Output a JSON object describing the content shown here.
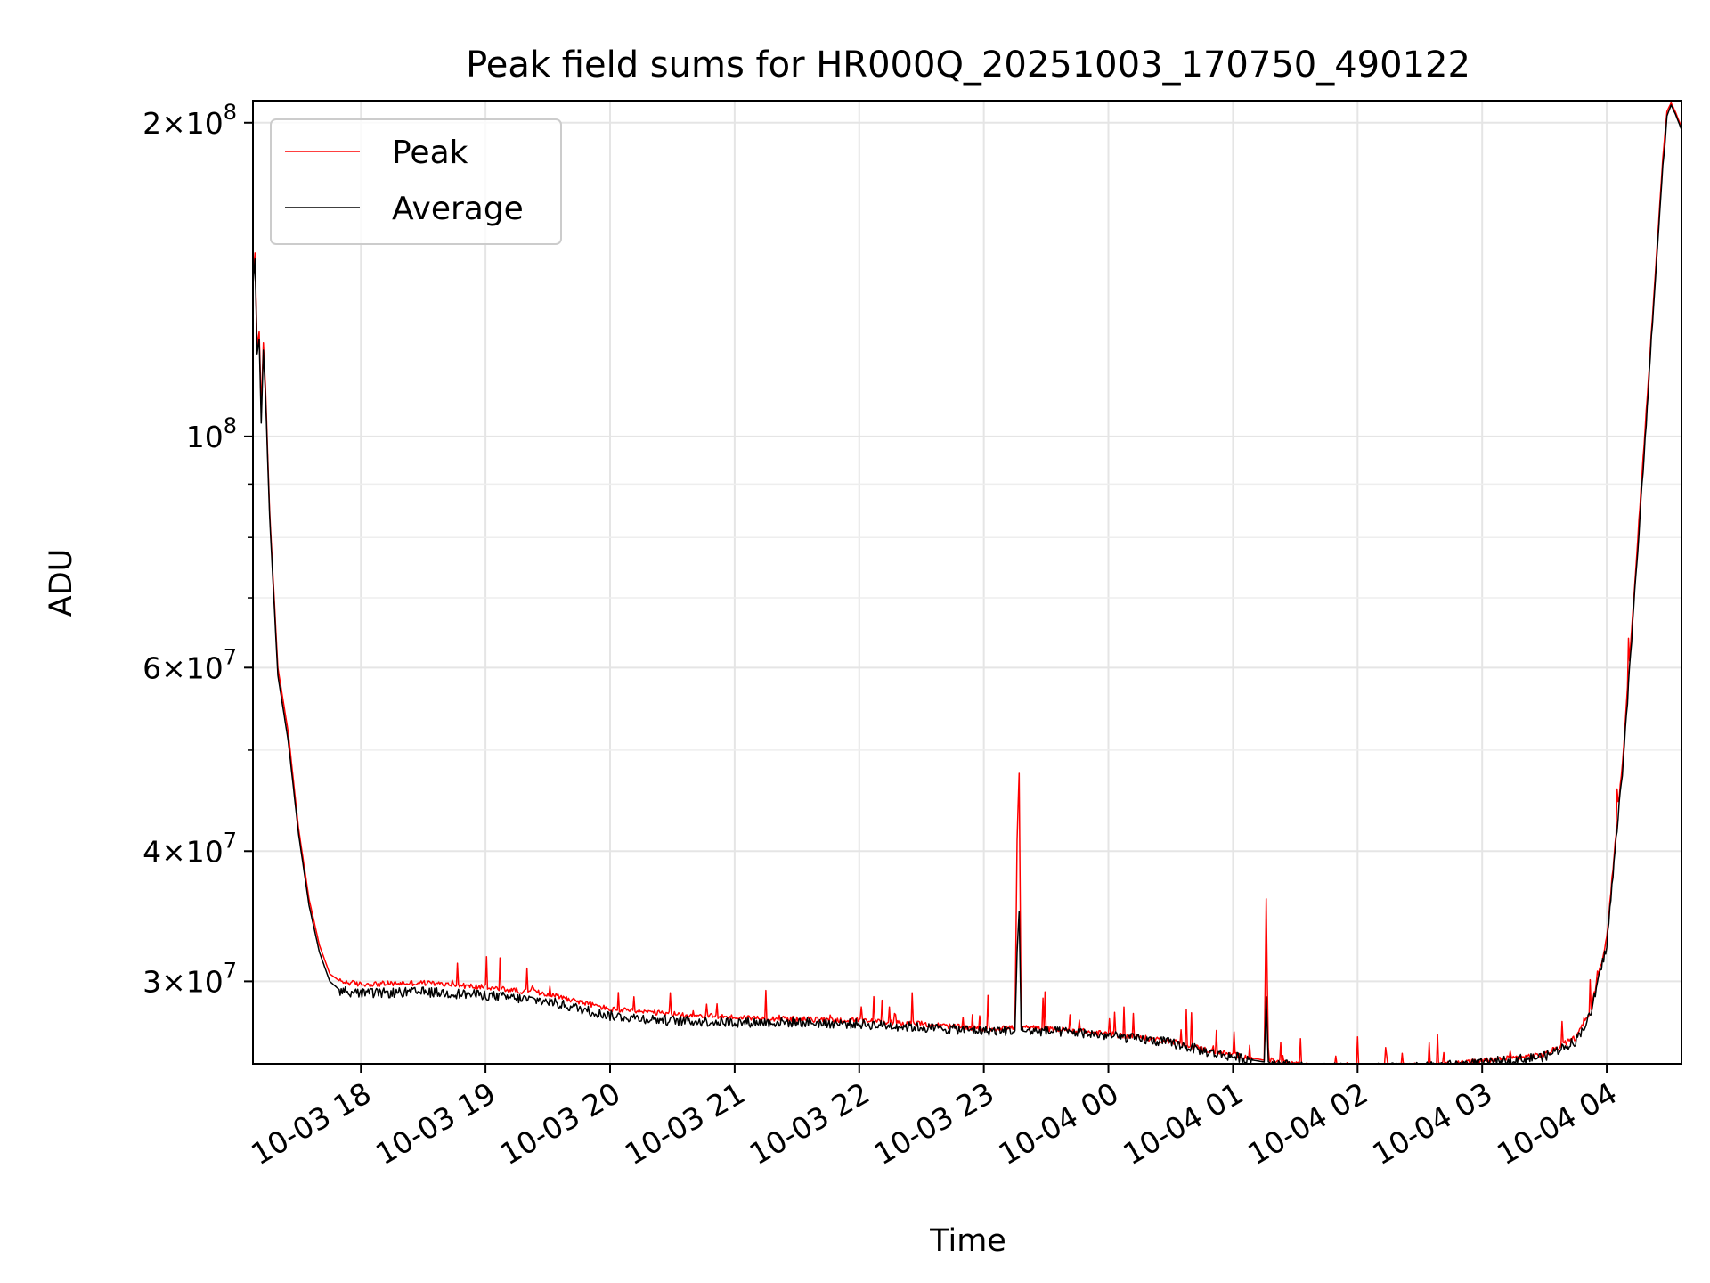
{
  "chart_data": {
    "type": "line",
    "title": "Peak field sums for HR000Q_20251003_170750_490122",
    "xlabel": "Time",
    "ylabel": "ADU",
    "y_scale": "log",
    "ylim": [
      25000000,
      210000000
    ],
    "xlim": [
      "2025-10-03 17:08",
      "2025-10-04 04:36"
    ],
    "grid": true,
    "legend_position": "upper-left",
    "x_ticks": [
      {
        "t": "2025-10-03 18:00",
        "label": "10-03 18"
      },
      {
        "t": "2025-10-03 19:00",
        "label": "10-03 19"
      },
      {
        "t": "2025-10-03 20:00",
        "label": "10-03 20"
      },
      {
        "t": "2025-10-03 21:00",
        "label": "10-03 21"
      },
      {
        "t": "2025-10-03 22:00",
        "label": "10-03 22"
      },
      {
        "t": "2025-10-03 23:00",
        "label": "10-03 23"
      },
      {
        "t": "2025-10-04 00:00",
        "label": "10-04 00"
      },
      {
        "t": "2025-10-04 01:00",
        "label": "10-04 01"
      },
      {
        "t": "2025-10-04 02:00",
        "label": "10-04 02"
      },
      {
        "t": "2025-10-04 03:00",
        "label": "10-04 03"
      },
      {
        "t": "2025-10-04 04:00",
        "label": "10-04 04"
      }
    ],
    "y_major_ticks": [
      {
        "value": 30000000,
        "mant": "3",
        "exp": "7"
      },
      {
        "value": 40000000,
        "mant": "4",
        "exp": "7"
      },
      {
        "value": 60000000,
        "mant": "6",
        "exp": "7"
      },
      {
        "value": 100000000,
        "mant": "",
        "exp": "8"
      },
      {
        "value": 200000000,
        "mant": "2",
        "exp": "8"
      }
    ],
    "y_minor_ticks": [
      50000000,
      70000000,
      80000000,
      90000000
    ],
    "series": [
      {
        "name": "Peak",
        "color": "#ff0000",
        "points": [
          [
            "2025-10-03 17:08",
            142000000
          ],
          [
            "2025-10-03 17:09",
            150000000
          ],
          [
            "2025-10-03 17:10",
            122000000
          ],
          [
            "2025-10-03 17:11",
            126000000
          ],
          [
            "2025-10-03 17:12",
            106000000
          ],
          [
            "2025-10-03 17:13",
            123000000
          ],
          [
            "2025-10-03 17:14",
            112000000
          ],
          [
            "2025-10-03 17:16",
            85000000
          ],
          [
            "2025-10-03 17:20",
            60000000
          ],
          [
            "2025-10-03 17:25",
            52000000
          ],
          [
            "2025-10-03 17:30",
            42000000
          ],
          [
            "2025-10-03 17:35",
            36000000
          ],
          [
            "2025-10-03 17:40",
            32500000
          ],
          [
            "2025-10-03 17:45",
            30500000
          ],
          [
            "2025-10-03 17:50",
            30000000
          ],
          [
            "2025-10-03 18:00",
            29800000
          ],
          [
            "2025-10-03 18:30",
            29900000
          ],
          [
            "2025-10-03 19:00",
            29600000
          ],
          [
            "2025-10-03 19:30",
            29200000
          ],
          [
            "2025-10-03 20:00",
            28200000
          ],
          [
            "2025-10-03 20:30",
            27900000
          ],
          [
            "2025-10-03 21:00",
            27700000
          ],
          [
            "2025-10-03 21:30",
            27600000
          ],
          [
            "2025-10-03 22:00",
            27500000
          ],
          [
            "2025-10-03 22:30",
            27300000
          ],
          [
            "2025-10-03 23:00",
            27000000
          ],
          [
            "2025-10-03 23:15",
            27100000
          ],
          [
            "2025-10-03 23:16",
            41000000
          ],
          [
            "2025-10-03 23:17",
            47500000
          ],
          [
            "2025-10-03 23:18",
            27100000
          ],
          [
            "2025-10-03 23:45",
            26900000
          ],
          [
            "2025-10-04 00:00",
            26700000
          ],
          [
            "2025-10-04 00:30",
            26300000
          ],
          [
            "2025-10-04 00:50",
            25700000
          ],
          [
            "2025-10-04 01:10",
            25300000
          ],
          [
            "2025-10-04 01:15",
            25200000
          ],
          [
            "2025-10-04 01:16",
            36000000
          ],
          [
            "2025-10-04 01:17",
            25200000
          ],
          [
            "2025-10-04 01:35",
            24900000
          ],
          [
            "2025-10-04 02:00",
            24850000
          ],
          [
            "2025-10-04 02:30",
            24900000
          ],
          [
            "2025-10-04 03:00",
            25150000
          ],
          [
            "2025-10-04 03:30",
            25500000
          ],
          [
            "2025-10-04 03:45",
            26500000
          ],
          [
            "2025-10-04 03:52",
            28000000
          ],
          [
            "2025-10-04 04:00",
            33000000
          ],
          [
            "2025-10-04 04:08",
            50000000
          ],
          [
            "2025-10-04 04:15",
            80000000
          ],
          [
            "2025-10-04 04:22",
            130000000
          ],
          [
            "2025-10-04 04:27",
            185000000
          ],
          [
            "2025-10-04 04:29",
            205000000
          ],
          [
            "2025-10-04 04:31",
            209000000
          ],
          [
            "2025-10-04 04:33",
            205000000
          ],
          [
            "2025-10-04 04:36",
            198000000
          ]
        ]
      },
      {
        "name": "Average",
        "color": "#000000",
        "points": [
          [
            "2025-10-03 17:08",
            140000000
          ],
          [
            "2025-10-03 17:09",
            148000000
          ],
          [
            "2025-10-03 17:10",
            120000000
          ],
          [
            "2025-10-03 17:11",
            124000000
          ],
          [
            "2025-10-03 17:12",
            103000000
          ],
          [
            "2025-10-03 17:13",
            121000000
          ],
          [
            "2025-10-03 17:14",
            110000000
          ],
          [
            "2025-10-03 17:16",
            84000000
          ],
          [
            "2025-10-03 17:20",
            59000000
          ],
          [
            "2025-10-03 17:25",
            51000000
          ],
          [
            "2025-10-03 17:30",
            41500000
          ],
          [
            "2025-10-03 17:35",
            35500000
          ],
          [
            "2025-10-03 17:40",
            32000000
          ],
          [
            "2025-10-03 17:45",
            30000000
          ],
          [
            "2025-10-03 17:50",
            29400000
          ],
          [
            "2025-10-03 18:00",
            29200000
          ],
          [
            "2025-10-03 18:30",
            29300000
          ],
          [
            "2025-10-03 19:00",
            29100000
          ],
          [
            "2025-10-03 19:30",
            28700000
          ],
          [
            "2025-10-03 20:00",
            27800000
          ],
          [
            "2025-10-03 20:30",
            27500000
          ],
          [
            "2025-10-03 21:00",
            27400000
          ],
          [
            "2025-10-03 21:30",
            27400000
          ],
          [
            "2025-10-03 22:00",
            27300000
          ],
          [
            "2025-10-03 22:30",
            27100000
          ],
          [
            "2025-10-03 23:00",
            26900000
          ],
          [
            "2025-10-03 23:15",
            26900000
          ],
          [
            "2025-10-03 23:16",
            32000000
          ],
          [
            "2025-10-03 23:17",
            35000000
          ],
          [
            "2025-10-03 23:18",
            26900000
          ],
          [
            "2025-10-03 23:45",
            26800000
          ],
          [
            "2025-10-04 00:00",
            26600000
          ],
          [
            "2025-10-04 00:30",
            26200000
          ],
          [
            "2025-10-04 00:50",
            25600000
          ],
          [
            "2025-10-04 01:10",
            25200000
          ],
          [
            "2025-10-04 01:15",
            25100000
          ],
          [
            "2025-10-04 01:16",
            29000000
          ],
          [
            "2025-10-04 01:17",
            25100000
          ],
          [
            "2025-10-04 01:35",
            24800000
          ],
          [
            "2025-10-04 02:00",
            24750000
          ],
          [
            "2025-10-04 02:30",
            24800000
          ],
          [
            "2025-10-04 03:00",
            25050000
          ],
          [
            "2025-10-04 03:30",
            25400000
          ],
          [
            "2025-10-04 03:45",
            26300000
          ],
          [
            "2025-10-04 03:52",
            27800000
          ],
          [
            "2025-10-04 04:00",
            32500000
          ],
          [
            "2025-10-04 04:08",
            49000000
          ],
          [
            "2025-10-04 04:15",
            78000000
          ],
          [
            "2025-10-04 04:22",
            128000000
          ],
          [
            "2025-10-04 04:27",
            182000000
          ],
          [
            "2025-10-04 04:28",
            190000000
          ],
          [
            "2025-10-04 04:29",
            203000000
          ],
          [
            "2025-10-04 04:31",
            208000000
          ],
          [
            "2025-10-04 04:33",
            204000000
          ],
          [
            "2025-10-04 04:36",
            197000000
          ]
        ]
      }
    ]
  },
  "tick_separator": "×",
  "log_base": "10"
}
